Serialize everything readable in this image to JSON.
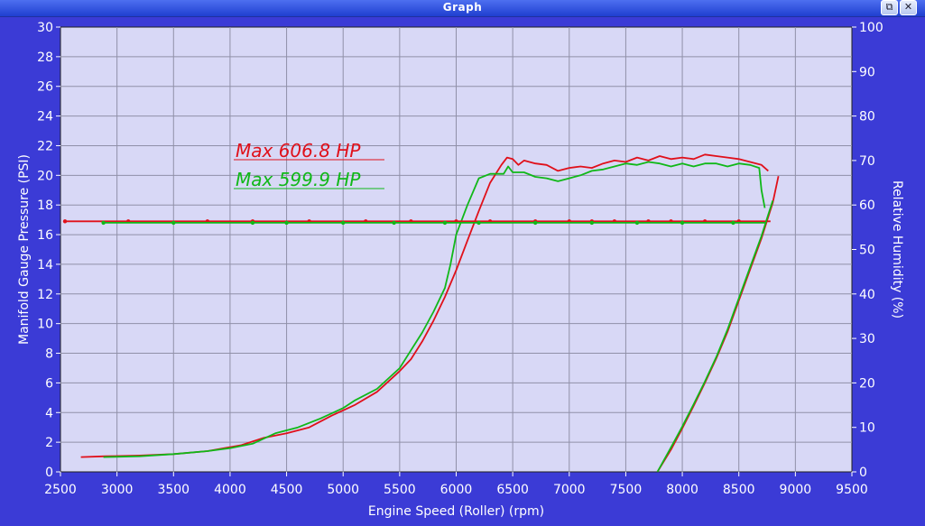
{
  "window": {
    "title": "Graph",
    "restore_icon": "restore-icon",
    "close_icon": "close-icon",
    "restore_glyph": "⧉",
    "close_glyph": "✕"
  },
  "colors": {
    "background": "#3b3bd6",
    "plot_area": "#d8d8f6",
    "grid": "#9090a8",
    "red": "#e0101a",
    "green": "#10b818"
  },
  "chart_data": {
    "type": "line",
    "xlabel": "Engine Speed (Roller) (rpm)",
    "ylabel": "Manifold Gauge Pressure (PSI)",
    "y2label": "Relative Humidity (%)",
    "xlim": [
      2500,
      9500
    ],
    "ylim": [
      0,
      30
    ],
    "y2lim": [
      0,
      100
    ],
    "x_ticks": [
      2500,
      3000,
      3500,
      4000,
      4500,
      5000,
      5500,
      6000,
      6500,
      7000,
      7500,
      8000,
      8500,
      9000,
      9500
    ],
    "y_ticks": [
      0,
      2,
      4,
      6,
      8,
      10,
      12,
      14,
      16,
      18,
      20,
      22,
      24,
      26,
      28,
      30
    ],
    "y2_ticks": [
      0,
      10,
      20,
      30,
      40,
      50,
      60,
      70,
      80,
      90,
      100
    ],
    "grid": true,
    "annotations": [
      {
        "text": "Max 606.8 HP",
        "color": "#e0101a"
      },
      {
        "text": "Max 599.9 HP",
        "color": "#10b818"
      }
    ],
    "series": [
      {
        "color": "#e0101a",
        "axis": "left",
        "points": [
          [
            2680,
            1.0
          ],
          [
            2900,
            1.05
          ],
          [
            3200,
            1.1
          ],
          [
            3500,
            1.2
          ],
          [
            3800,
            1.4
          ],
          [
            4100,
            1.8
          ],
          [
            4300,
            2.3
          ],
          [
            4500,
            2.6
          ],
          [
            4700,
            3.0
          ],
          [
            4900,
            3.8
          ],
          [
            5100,
            4.5
          ],
          [
            5300,
            5.4
          ],
          [
            5500,
            6.8
          ],
          [
            5600,
            7.6
          ],
          [
            5700,
            8.8
          ],
          [
            5800,
            10.2
          ],
          [
            5900,
            11.8
          ],
          [
            6000,
            13.6
          ],
          [
            6100,
            15.6
          ],
          [
            6200,
            17.6
          ],
          [
            6300,
            19.5
          ],
          [
            6400,
            20.7
          ],
          [
            6450,
            21.2
          ],
          [
            6500,
            21.1
          ],
          [
            6550,
            20.7
          ],
          [
            6600,
            21.0
          ],
          [
            6700,
            20.8
          ],
          [
            6800,
            20.7
          ],
          [
            6900,
            20.3
          ],
          [
            7000,
            20.5
          ],
          [
            7100,
            20.6
          ],
          [
            7200,
            20.5
          ],
          [
            7300,
            20.8
          ],
          [
            7400,
            21.0
          ],
          [
            7500,
            20.9
          ],
          [
            7600,
            21.2
          ],
          [
            7700,
            21.0
          ],
          [
            7800,
            21.3
          ],
          [
            7900,
            21.1
          ],
          [
            8000,
            21.2
          ],
          [
            8100,
            21.1
          ],
          [
            8200,
            21.4
          ],
          [
            8300,
            21.3
          ],
          [
            8400,
            21.2
          ],
          [
            8500,
            21.1
          ],
          [
            8600,
            20.9
          ],
          [
            8700,
            20.7
          ],
          [
            8760,
            20.3
          ]
        ]
      },
      {
        "color": "#10b818",
        "axis": "left",
        "points": [
          [
            2880,
            1.0
          ],
          [
            3200,
            1.05
          ],
          [
            3500,
            1.2
          ],
          [
            3800,
            1.4
          ],
          [
            4000,
            1.6
          ],
          [
            4200,
            1.9
          ],
          [
            4400,
            2.6
          ],
          [
            4600,
            3.0
          ],
          [
            4800,
            3.6
          ],
          [
            5000,
            4.3
          ],
          [
            5100,
            4.8
          ],
          [
            5300,
            5.6
          ],
          [
            5500,
            7.0
          ],
          [
            5600,
            8.2
          ],
          [
            5700,
            9.4
          ],
          [
            5800,
            10.8
          ],
          [
            5900,
            12.4
          ],
          [
            5950,
            14.0
          ],
          [
            6000,
            16.0
          ],
          [
            6100,
            18.0
          ],
          [
            6200,
            19.8
          ],
          [
            6300,
            20.1
          ],
          [
            6420,
            20.1
          ],
          [
            6460,
            20.6
          ],
          [
            6500,
            20.2
          ],
          [
            6600,
            20.2
          ],
          [
            6700,
            19.9
          ],
          [
            6800,
            19.8
          ],
          [
            6900,
            19.6
          ],
          [
            7000,
            19.8
          ],
          [
            7100,
            20.0
          ],
          [
            7200,
            20.3
          ],
          [
            7300,
            20.4
          ],
          [
            7400,
            20.6
          ],
          [
            7500,
            20.8
          ],
          [
            7600,
            20.7
          ],
          [
            7700,
            20.9
          ],
          [
            7800,
            20.8
          ],
          [
            7900,
            20.6
          ],
          [
            8000,
            20.8
          ],
          [
            8100,
            20.6
          ],
          [
            8200,
            20.8
          ],
          [
            8300,
            20.8
          ],
          [
            8400,
            20.6
          ],
          [
            8500,
            20.8
          ],
          [
            8600,
            20.7
          ],
          [
            8680,
            20.5
          ],
          [
            8700,
            19.0
          ],
          [
            8730,
            17.8
          ]
        ]
      },
      {
        "color": "#e0101a",
        "axis": "left",
        "points": [
          [
            2540,
            16.9
          ],
          [
            8780,
            16.9
          ]
        ],
        "markers": [
          2540,
          3100,
          3800,
          4200,
          4700,
          5200,
          5600,
          6000,
          6300,
          6700,
          7000,
          7200,
          7400,
          7700,
          7900,
          8200,
          8500
        ]
      },
      {
        "color": "#10b818",
        "axis": "left",
        "points": [
          [
            2880,
            16.8
          ],
          [
            8730,
            16.8
          ]
        ],
        "markers": [
          2880,
          3500,
          4200,
          4500,
          5000,
          5450,
          5900,
          6200,
          6700,
          7200,
          7600,
          8000,
          8450
        ]
      },
      {
        "color": "#e0101a",
        "axis": "right",
        "points": [
          [
            7780,
            0
          ],
          [
            7900,
            5
          ],
          [
            8000,
            9.8
          ],
          [
            8100,
            14.8
          ],
          [
            8200,
            20
          ],
          [
            8300,
            25.5
          ],
          [
            8400,
            31.5
          ],
          [
            8500,
            38.5
          ],
          [
            8600,
            45.5
          ],
          [
            8700,
            52.5
          ],
          [
            8750,
            56.5
          ],
          [
            8800,
            60.5
          ],
          [
            8850,
            66.5
          ]
        ]
      },
      {
        "color": "#10b818",
        "axis": "right",
        "points": [
          [
            7780,
            0
          ],
          [
            7900,
            5.5
          ],
          [
            8000,
            10.2
          ],
          [
            8100,
            15.2
          ],
          [
            8200,
            20.3
          ],
          [
            8300,
            25.8
          ],
          [
            8400,
            32
          ],
          [
            8500,
            39
          ],
          [
            8600,
            46
          ],
          [
            8700,
            53
          ],
          [
            8750,
            57
          ],
          [
            8800,
            61
          ]
        ]
      }
    ]
  }
}
